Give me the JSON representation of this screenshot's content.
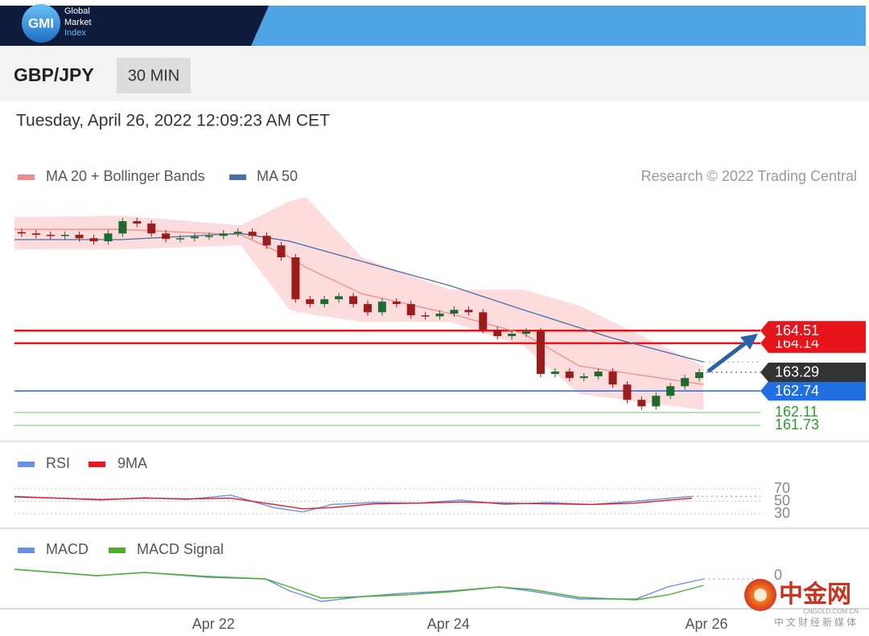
{
  "header": {
    "logo": "GMI",
    "brand_lines": [
      "Global",
      "Market",
      "Index"
    ]
  },
  "toolbar": {
    "symbol": "GBP/JPY",
    "interval": "30 MIN"
  },
  "timestamp": "Tuesday, April 26, 2022 12:09:23 AM CET",
  "watermark": {
    "name": "中金网",
    "domain": "CNGOLD.COM.CN",
    "tagline": "中文财经新媒体"
  },
  "chart_data": [
    {
      "type": "candlestick",
      "credit": "Research © 2022 Trading Central",
      "xlim": [
        0,
        48
      ],
      "ylim": [
        161.45,
        168.5
      ],
      "up_color": "#1e6b2e",
      "down_color": "#9c1c1c",
      "candles": {
        "open": [
          167.4,
          167.36,
          167.32,
          167.29,
          167.32,
          167.22,
          167.13,
          167.36,
          167.72,
          167.65,
          167.36,
          167.2,
          167.22,
          167.27,
          167.29,
          167.36,
          167.41,
          167.29,
          167.01,
          166.66,
          165.43,
          165.29,
          165.43,
          165.52,
          165.29,
          165.05,
          165.36,
          165.29,
          164.96,
          164.93,
          165.01,
          165.12,
          165.05,
          164.53,
          164.35,
          164.42,
          164.49,
          163.24,
          163.31,
          163.12,
          163.17,
          163.31,
          162.93,
          162.48,
          162.29,
          162.6,
          162.88,
          163.12
        ],
        "high": [
          167.5,
          167.46,
          167.42,
          167.42,
          167.42,
          167.32,
          167.46,
          167.82,
          167.82,
          167.75,
          167.46,
          167.32,
          167.37,
          167.39,
          167.46,
          167.51,
          167.51,
          167.39,
          167.11,
          166.76,
          165.53,
          165.53,
          165.62,
          165.62,
          165.39,
          165.46,
          165.46,
          165.39,
          165.06,
          165.11,
          165.22,
          165.22,
          165.15,
          164.63,
          164.52,
          164.59,
          164.59,
          163.41,
          163.41,
          163.27,
          163.41,
          163.41,
          163.03,
          162.58,
          162.7,
          162.98,
          163.22,
          163.39
        ],
        "low": [
          167.26,
          167.22,
          167.19,
          167.19,
          167.12,
          167.03,
          167.03,
          167.26,
          167.55,
          167.26,
          167.1,
          167.1,
          167.12,
          167.17,
          167.19,
          167.26,
          167.19,
          166.91,
          166.56,
          165.33,
          165.19,
          165.19,
          165.33,
          165.19,
          164.95,
          164.95,
          165.19,
          164.86,
          164.83,
          164.83,
          164.91,
          164.95,
          164.43,
          164.25,
          164.25,
          164.32,
          163.14,
          163.14,
          163.02,
          163.02,
          163.07,
          162.83,
          162.38,
          162.19,
          162.19,
          162.5,
          162.78,
          163.02
        ],
        "close": [
          167.36,
          167.32,
          167.29,
          167.32,
          167.22,
          167.13,
          167.36,
          167.72,
          167.65,
          167.36,
          167.2,
          167.22,
          167.27,
          167.29,
          167.36,
          167.41,
          167.29,
          167.01,
          166.66,
          165.43,
          165.29,
          165.43,
          165.52,
          165.29,
          165.05,
          165.36,
          165.29,
          164.96,
          164.93,
          165.01,
          165.12,
          165.05,
          164.53,
          164.35,
          164.42,
          164.49,
          163.24,
          163.31,
          163.12,
          163.17,
          163.31,
          162.93,
          162.48,
          162.29,
          162.6,
          162.88,
          163.12,
          163.29
        ]
      },
      "series": [
        {
          "name": "MA 20 + Bollinger Bands",
          "color": "#f08c8c",
          "band_color": "#fcdcdc",
          "x": [
            0,
            7.4,
            15.7,
            19.1,
            20.2,
            24.1,
            30.2,
            35.3,
            39.2,
            47.8
          ],
          "values": [
            167.48,
            167.48,
            167.32,
            166.66,
            166.37,
            165.59,
            165.01,
            164.42,
            163.47,
            162.93
          ],
          "upper": [
            167.84,
            167.88,
            167.6,
            168.31,
            168.43,
            166.66,
            165.71,
            165.71,
            165.24,
            163.47
          ],
          "lower": [
            166.89,
            166.89,
            167.01,
            165.12,
            165.01,
            164.77,
            164.77,
            164.06,
            162.65,
            162.18
          ]
        },
        {
          "name": "MA 50",
          "color": "#4a6fa5",
          "x": [
            0,
            7.4,
            15.7,
            19.1,
            24.1,
            30.2,
            35.3,
            41.4,
            47.8
          ],
          "values": [
            167.18,
            167.18,
            167.36,
            167.13,
            166.54,
            165.83,
            165.12,
            164.3,
            163.59
          ]
        }
      ],
      "levels": [
        {
          "value": 164.51,
          "color": "#e8141b",
          "label_style": "box",
          "line": "solid"
        },
        {
          "value": 164.14,
          "color": "#e8141b",
          "label_style": "box",
          "line": "solid"
        },
        {
          "value": 163.29,
          "color": "#333333",
          "label_style": "box",
          "line": "dotted"
        },
        {
          "value": 162.74,
          "color": "#1f6fe0",
          "label_style": "box",
          "line": "solid"
        },
        {
          "value": 162.11,
          "color": "#2e9a2e",
          "label_style": "text",
          "line": "thin"
        },
        {
          "value": 161.73,
          "color": "#2e9a2e",
          "label_style": "text",
          "line": "thin"
        }
      ]
    },
    {
      "type": "line",
      "xlim": [
        0,
        48
      ],
      "ylim": [
        10,
        90
      ],
      "yticks": [
        70,
        50,
        30
      ],
      "x": [
        0,
        3,
        6,
        9,
        12,
        15,
        18,
        20,
        22,
        25,
        28,
        31,
        34,
        37,
        40,
        43,
        47
      ],
      "series": [
        {
          "name": "RSI",
          "color": "#6b8fe8",
          "values": [
            58,
            55,
            52,
            56,
            53,
            60,
            40,
            33,
            45,
            48,
            47,
            52,
            45,
            48,
            45,
            50,
            58
          ]
        },
        {
          "name": "9MA",
          "color": "#e31b23",
          "values": [
            57,
            55,
            53,
            55,
            54,
            55,
            45,
            38,
            40,
            46,
            47,
            49,
            47,
            46,
            45,
            47,
            55
          ]
        }
      ]
    },
    {
      "type": "line",
      "xlim": [
        0,
        48
      ],
      "ylim": [
        -0.45,
        0.15
      ],
      "yticks": [
        0
      ],
      "xticks": [
        {
          "value": 13.8,
          "label": "Apr 22"
        },
        {
          "value": 30.1,
          "label": "Apr 24"
        },
        {
          "value": 48,
          "label": "Apr 26"
        }
      ],
      "x": [
        0,
        5.7,
        9,
        13.5,
        17.4,
        19.1,
        21.3,
        24.1,
        26.9,
        30.2,
        33.6,
        35.8,
        39.2,
        43.1,
        45.3,
        47.8
      ],
      "series": [
        {
          "name": "MACD",
          "color": "#6b8fe8",
          "values": [
            0.08,
            0,
            0.04,
            -0.02,
            -0.04,
            -0.19,
            -0.32,
            -0.26,
            -0.22,
            -0.19,
            -0.14,
            -0.19,
            -0.29,
            -0.29,
            -0.14,
            -0.04
          ]
        },
        {
          "name": "MACD Signal",
          "color": "#4caf2a",
          "values": [
            0.08,
            0,
            0.04,
            -0.01,
            -0.04,
            -0.14,
            -0.28,
            -0.26,
            -0.24,
            -0.2,
            -0.14,
            -0.17,
            -0.27,
            -0.3,
            -0.24,
            -0.12
          ]
        }
      ]
    }
  ]
}
